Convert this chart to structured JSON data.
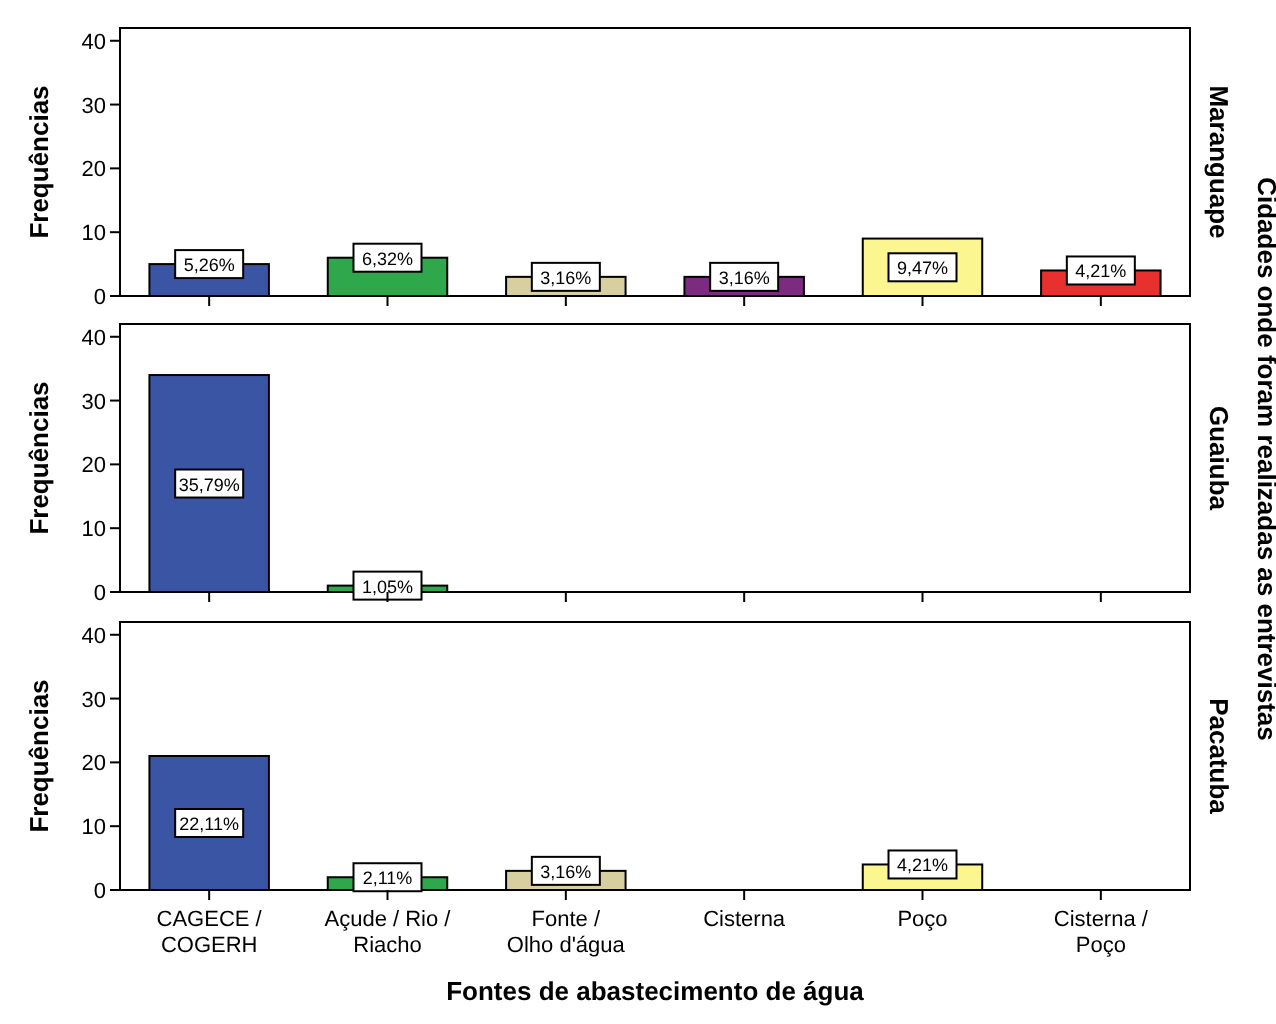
{
  "chart_data": [
    {
      "type": "bar",
      "y2label": "Maranguape",
      "ylabel": "Frequências",
      "categories": [
        null,
        null,
        null,
        null,
        null,
        null
      ],
      "values": [
        5,
        6,
        3,
        3,
        9,
        4
      ],
      "colors": [
        "#3b55a5",
        "#2fa84b",
        "#d7cf9f",
        "#7d2b80",
        "#fbf68f",
        "#e8302f"
      ],
      "ylim": [
        0,
        42
      ],
      "yticks": [
        0,
        10,
        20,
        30,
        40
      ],
      "annotations": [
        "Cidades onde foram realizadas as entrevistas",
        "5,26%",
        "6,32%",
        "3,16%",
        "3,16%",
        "9,47%",
        "4,21%"
      ]
    },
    {
      "type": "bar",
      "y2label": "Guaiuba",
      "ylabel": "Frequências",
      "categories": [
        null,
        null,
        null,
        null,
        null,
        null
      ],
      "values": [
        34,
        1,
        null,
        null,
        null,
        null
      ],
      "colors": [
        "#3b55a5",
        "#2fa84b",
        null,
        null,
        null,
        null
      ],
      "ylim": [
        0,
        42
      ],
      "yticks": [
        0,
        10,
        20,
        30,
        40
      ],
      "annotations": [
        "35,79%",
        "1,05%"
      ]
    },
    {
      "type": "bar",
      "y2label": "Pacatuba",
      "ylabel": "Frequências",
      "xlabel": "Fontes de abastecimento de água",
      "categories": [
        "CAGECE / COGERH",
        "Açude / Rio / Riacho",
        "Fonte / Olho d'água",
        "Cisterna",
        "Poço",
        "Cisterna / Poço"
      ],
      "values": [
        21,
        2,
        3,
        null,
        4,
        null
      ],
      "colors": [
        "#3b55a5",
        "#2fa84b",
        "#d7cf9f",
        null,
        "#fbf68f",
        null
      ],
      "ylim": [
        0,
        42
      ],
      "yticks": [
        0,
        10,
        20,
        30,
        40
      ],
      "annotations": [
        {
          "text": "22,11%",
          "x": "CAGECE / COGERH",
          "y": 10.5
        },
        {
          "text": "2,11%",
          "x": "Açude / Rio / Riacho",
          "y": 2
        },
        {
          "text": "3,16%",
          "x": "Fonte / Olho d'água",
          "y": 3
        },
        {
          "text": "4,21%",
          "x": "Poço",
          "y": 4
        }
      ]
    }
  ]
}
